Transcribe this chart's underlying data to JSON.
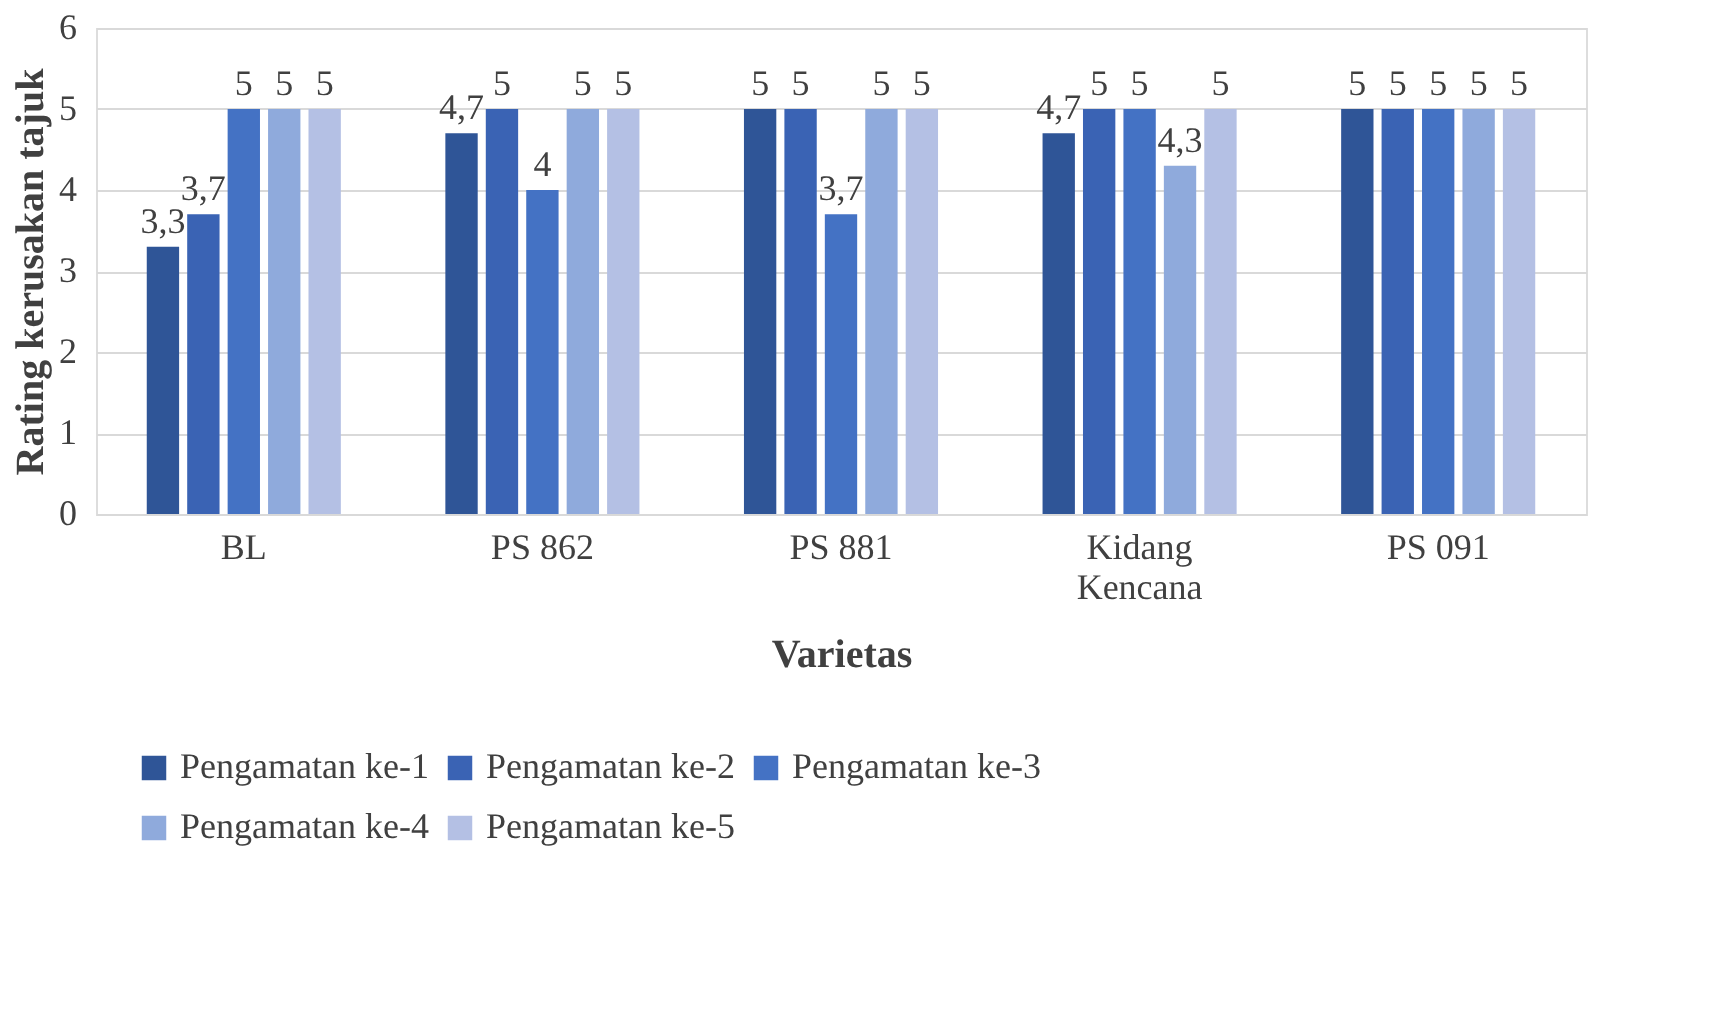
{
  "chart_data": {
    "type": "bar",
    "xlabel": "Varietas",
    "ylabel": "Rating kerusakan tajuk",
    "categories": [
      "BL",
      "PS 862",
      "PS 881",
      "Kidang Kencana",
      "PS 091"
    ],
    "series": [
      {
        "name": "Pengamatan ke-1",
        "color": "#2f5597",
        "values": [
          3.3,
          4.7,
          5,
          4.7,
          5
        ],
        "value_labels": [
          "3,3",
          "4,7",
          "5",
          "4,7",
          "5"
        ]
      },
      {
        "name": "Pengamatan ke-2",
        "color": "#3a63b4",
        "values": [
          3.7,
          5,
          5,
          5,
          5
        ],
        "value_labels": [
          "3,7",
          "5",
          "5",
          "5",
          "5"
        ]
      },
      {
        "name": "Pengamatan ke-3",
        "color": "#4472c4",
        "values": [
          5,
          4,
          3.7,
          5,
          5
        ],
        "value_labels": [
          "5",
          "4",
          "3,7",
          "5",
          "5"
        ]
      },
      {
        "name": "Pengamatan ke-4",
        "color": "#8faadc",
        "values": [
          5,
          5,
          5,
          4.3,
          5
        ],
        "value_labels": [
          "5",
          "5",
          "5",
          "4,3",
          "5"
        ]
      },
      {
        "name": "Pengamatan ke-5",
        "color": "#b4c0e4",
        "values": [
          5,
          5,
          5,
          5,
          5
        ],
        "value_labels": [
          "5",
          "5",
          "5",
          "5",
          "5"
        ]
      }
    ],
    "ylim": [
      0,
      6
    ],
    "yticks": [
      0,
      1,
      2,
      3,
      4,
      5,
      6
    ],
    "grid": "y",
    "legend": "bottom"
  }
}
